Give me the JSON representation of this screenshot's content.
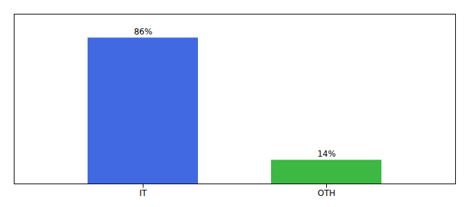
{
  "chart_data": {
    "type": "bar",
    "categories": [
      "IT",
      "OTH"
    ],
    "values": [
      86,
      14
    ],
    "colors": [
      "#4169E1",
      "#3CB843"
    ],
    "value_labels": [
      "86%",
      "14%"
    ],
    "data_labels": true,
    "ylim": [
      0,
      100
    ],
    "tick_labels": "x",
    "grid": false
  }
}
